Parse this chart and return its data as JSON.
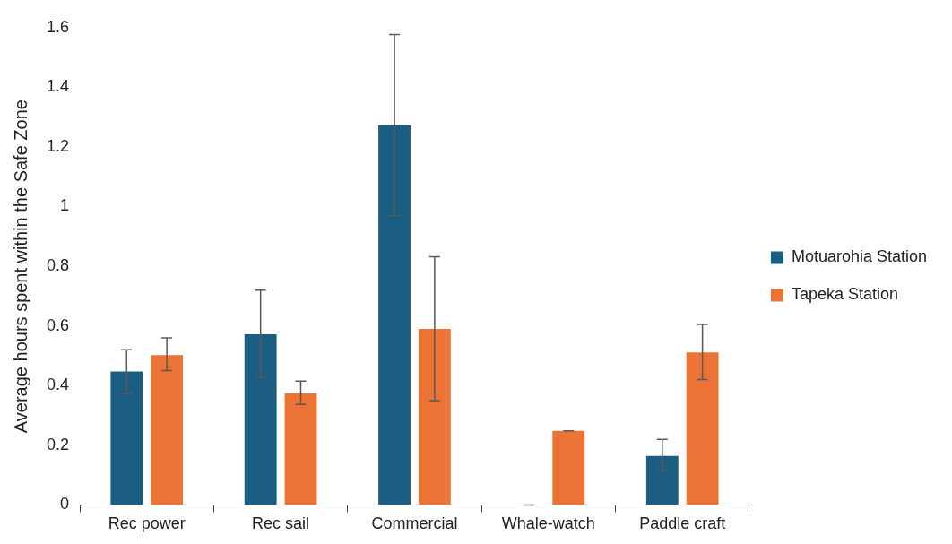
{
  "chart_data": {
    "type": "bar",
    "ylabel": "Average hours spent within the Safe Zone",
    "categories": [
      "Rec power",
      "Rec sail",
      "Commercial",
      "Whale-watch",
      "Paddle craft"
    ],
    "series": [
      {
        "name": "Motuarohia Station",
        "color": "#1b5e82",
        "values": [
          0.447,
          0.572,
          1.273,
          0,
          0.164
        ],
        "errors": [
          [
            0.373,
            0.52
          ],
          [
            0.428,
            0.72
          ],
          [
            0.97,
            1.577
          ],
          [
            0,
            0
          ],
          [
            0.115,
            0.22
          ]
        ]
      },
      {
        "name": "Tapeka Station",
        "color": "#eb7336",
        "values": [
          0.502,
          0.374,
          0.59,
          0.248,
          0.511
        ],
        "errors": [
          [
            0.45,
            0.56
          ],
          [
            0.337,
            0.415
          ],
          [
            0.35,
            0.832
          ],
          [
            0.248,
            0.248
          ],
          [
            0.42,
            0.605
          ]
        ]
      }
    ],
    "ylim": [
      0,
      1.6
    ],
    "yticks": [
      0,
      0.2,
      0.4,
      0.6,
      0.8,
      1,
      1.2,
      1.4,
      1.6
    ],
    "grid": false,
    "legend": "right"
  }
}
